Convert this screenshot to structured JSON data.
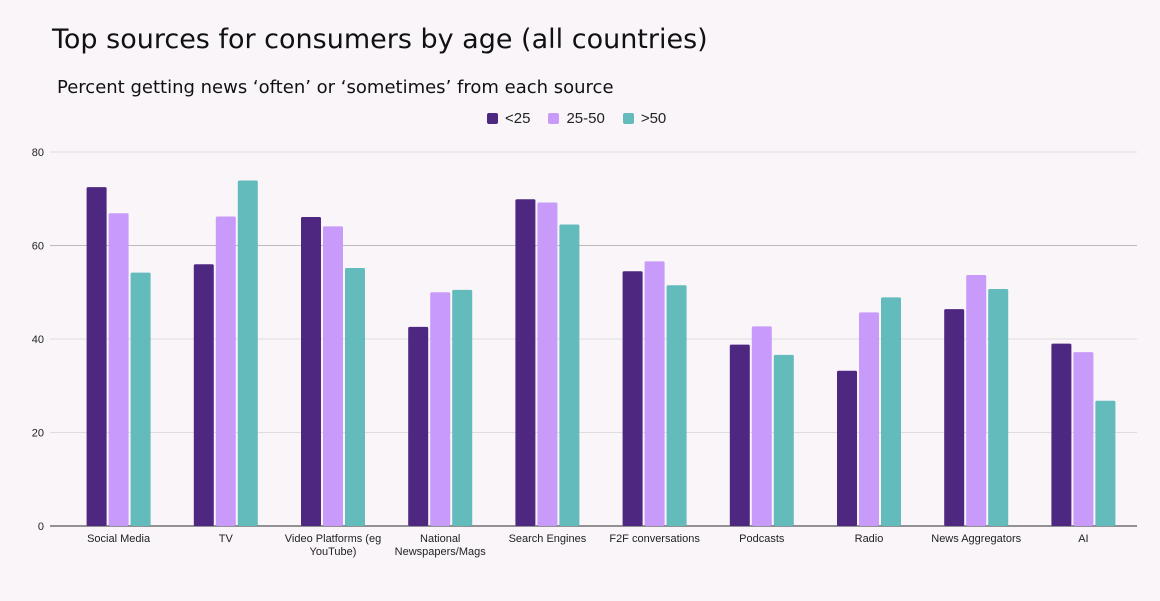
{
  "chart_data": {
    "type": "bar",
    "title": "Top sources for consumers by age (all countries)",
    "subtitle": "Percent getting news ‘often’ or ‘sometimes’ from each source",
    "categories": [
      "Social Media",
      "TV",
      "Video Platforms (eg YouTube)",
      "National Newspapers/Mags",
      "Search Engines",
      "F2F conversations",
      "Podcasts",
      "Radio",
      "News Aggregators",
      "AI"
    ],
    "category_lines": [
      [
        "Social Media"
      ],
      [
        "TV"
      ],
      [
        "Video Platforms (eg",
        "YouTube)"
      ],
      [
        "National",
        "Newspapers/Mags"
      ],
      [
        "Search Engines"
      ],
      [
        "F2F conversations"
      ],
      [
        "Podcasts"
      ],
      [
        "Radio"
      ],
      [
        "News Aggregators"
      ],
      [
        "AI"
      ]
    ],
    "series": [
      {
        "name": "<25",
        "color": "#4e2781",
        "values": [
          72.5,
          56.0,
          66.1,
          42.6,
          69.9,
          54.5,
          38.8,
          33.2,
          46.4,
          39.0
        ]
      },
      {
        "name": "25-50",
        "color": "#c89bfb",
        "values": [
          66.9,
          66.2,
          64.1,
          50.0,
          69.2,
          56.6,
          42.7,
          45.7,
          53.7,
          37.2
        ]
      },
      {
        "name": ">50",
        "color": "#63bbbb",
        "values": [
          54.2,
          73.9,
          55.2,
          50.5,
          64.5,
          51.5,
          36.6,
          48.9,
          50.7,
          26.8
        ]
      }
    ],
    "yticks": [
      "0",
      "20",
      "40",
      "60",
      "80"
    ],
    "ylim": [
      0,
      80
    ],
    "xlabel": "",
    "ylabel": "",
    "grid": true,
    "legend_position": "top"
  }
}
